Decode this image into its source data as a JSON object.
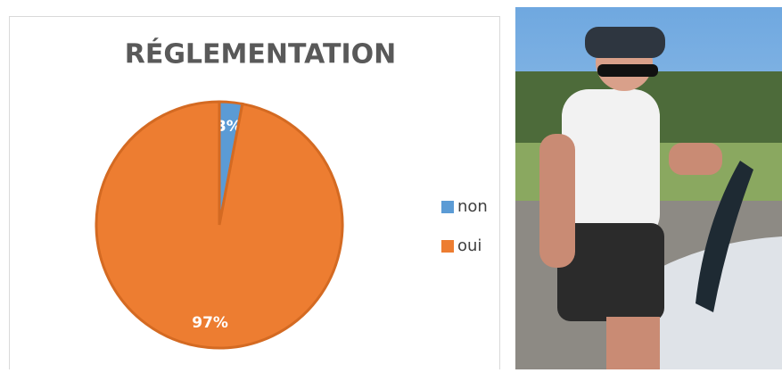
{
  "chart_data": {
    "type": "pie",
    "title": "RÉGLEMENTATION",
    "categories": [
      "non",
      "oui"
    ],
    "values": [
      3,
      97
    ],
    "value_labels": [
      "3%",
      "97%"
    ],
    "colors": [
      "#5b9bd5",
      "#ed7d31"
    ],
    "legend": "right"
  }
}
